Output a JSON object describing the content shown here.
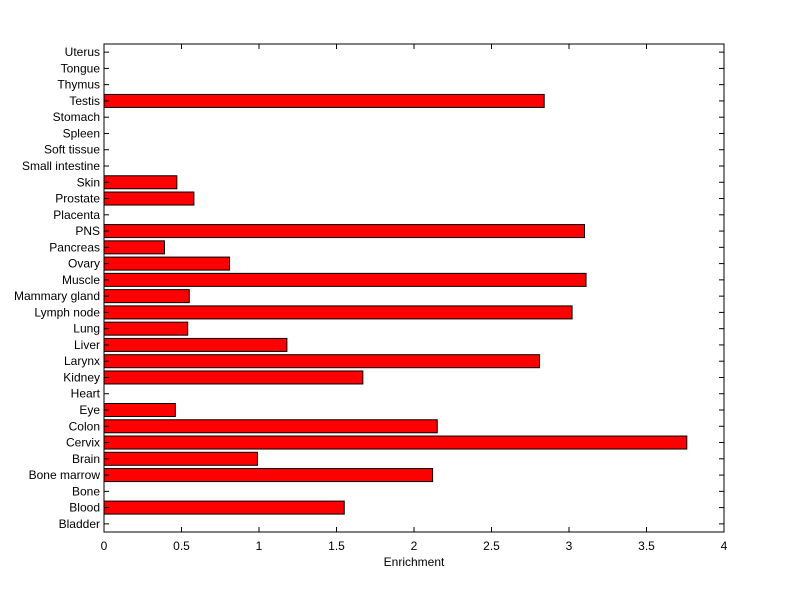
{
  "chart_data": {
    "type": "bar",
    "orientation": "horizontal",
    "title": "",
    "xlabel": "Enrichment",
    "ylabel": "",
    "xlim": [
      0,
      4
    ],
    "xticks": [
      0,
      0.5,
      1,
      1.5,
      2,
      2.5,
      3,
      3.5,
      4
    ],
    "xtick_labels": [
      "0",
      "0.5",
      "1",
      "1.5",
      "2",
      "2.5",
      "3",
      "3.5",
      "4"
    ],
    "grid": false,
    "bar_color": "#ff0000",
    "categories": [
      "Bladder",
      "Blood",
      "Bone",
      "Bone marrow",
      "Brain",
      "Cervix",
      "Colon",
      "Eye",
      "Heart",
      "Kidney",
      "Larynx",
      "Liver",
      "Lung",
      "Lymph node",
      "Mammary gland",
      "Muscle",
      "Ovary",
      "Pancreas",
      "PNS",
      "Placenta",
      "Prostate",
      "Skin",
      "Small intestine",
      "Soft tissue",
      "Spleen",
      "Stomach",
      "Testis",
      "Thymus",
      "Tongue",
      "Uterus"
    ],
    "values": [
      0,
      1.55,
      0,
      2.12,
      0.99,
      3.76,
      2.15,
      0.46,
      0,
      1.67,
      2.81,
      1.18,
      0.54,
      3.02,
      0.55,
      3.11,
      0.81,
      0.39,
      3.1,
      0,
      0.58,
      0.47,
      0,
      0,
      0,
      0,
      2.84,
      0,
      0,
      0
    ]
  }
}
